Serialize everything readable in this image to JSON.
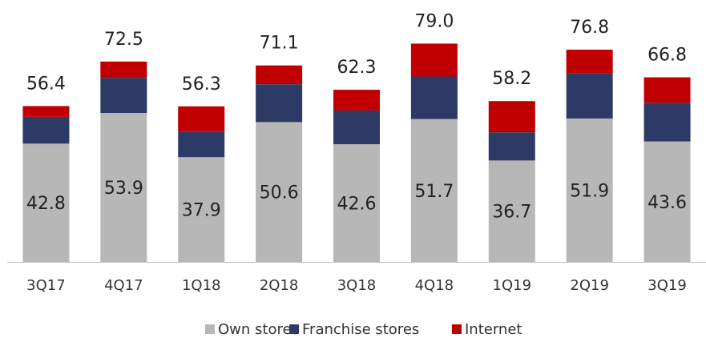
{
  "chart_data": {
    "type": "stacked_bar",
    "categories": [
      "3Q17",
      "4Q17",
      "1Q18",
      "2Q18",
      "3Q18",
      "4Q18",
      "1Q19",
      "2Q19",
      "3Q19"
    ],
    "series": [
      {
        "name": "Own stores",
        "color": "#b7b7b7",
        "values": [
          42.8,
          53.9,
          37.9,
          50.6,
          42.6,
          51.7,
          36.7,
          51.9,
          43.6
        ]
      },
      {
        "name": "Franchise stores",
        "color": "#2e3a66",
        "values": [
          9.7,
          12.7,
          9.3,
          13.7,
          12.2,
          15.4,
          10.2,
          16.3,
          14.0
        ]
      },
      {
        "name": "Internet",
        "color": "#c00000",
        "values": [
          3.9,
          5.9,
          9.1,
          6.8,
          7.5,
          11.9,
          11.3,
          8.6,
          9.2
        ]
      }
    ],
    "totals": [
      56.4,
      72.5,
      56.3,
      71.1,
      62.3,
      79.0,
      58.2,
      76.8,
      66.8
    ],
    "totals_labels": [
      "56.4",
      "72.5",
      "56.3",
      "71.1",
      "62.3",
      "79.0",
      "58.2",
      "76.8",
      "66.8"
    ],
    "ylim": [
      0,
      80
    ]
  }
}
